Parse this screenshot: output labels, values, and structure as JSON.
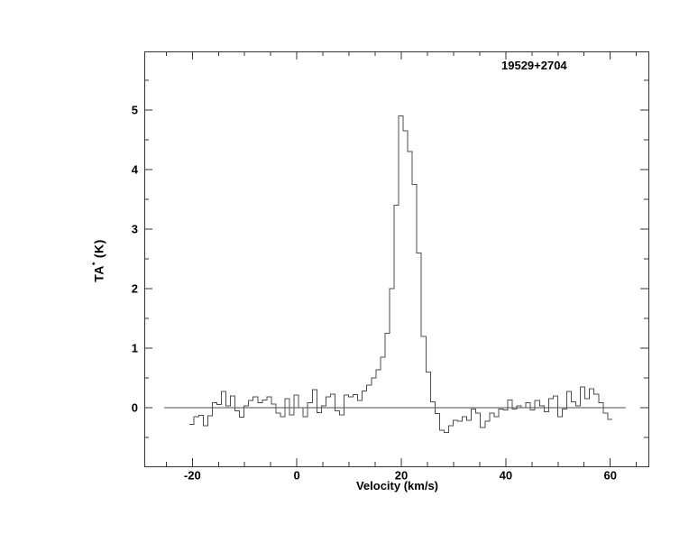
{
  "page": {
    "background": "#ffffff"
  },
  "chart_data": {
    "type": "line",
    "style": "step-histogram",
    "title": "19529+2704",
    "xlabel": "Velocity (km/s)",
    "ylabel": "TA* (K)",
    "ylabel_parts": {
      "base": "TA",
      "sup": "*",
      "unit": "(K)"
    },
    "xlim": [
      -29.2,
      67.3
    ],
    "ylim": [
      -0.985,
      5.985
    ],
    "x_major_ticks": [
      -20,
      0,
      20,
      40,
      60
    ],
    "x_tick_labels": [
      "-20",
      "0",
      "20",
      "40",
      "60"
    ],
    "x_minor_tick_step": 5,
    "y_major_ticks": [
      0,
      1,
      2,
      3,
      4,
      5
    ],
    "y_tick_labels": [
      "0",
      "1",
      "2",
      "3",
      "4",
      "5"
    ],
    "y_minor_tick_step": 0.5,
    "grid": "off",
    "legend": "none",
    "frame_color": "#333333",
    "line_color": "#4d4d4d",
    "text_color": "#000000",
    "zero_line": {
      "T": 0,
      "v_start": -25.4,
      "v_end": 63.0
    },
    "peak": {
      "velocity": 19.9,
      "T_max": 4.9
    },
    "series": [
      {
        "name": "spectrum",
        "v_start": -20.1,
        "dv": 0.87,
        "v_end": 59.94,
        "T": [
          -0.28,
          -0.15,
          -0.13,
          -0.3,
          -0.14,
          0.08,
          0.05,
          0.27,
          0.03,
          0.2,
          -0.05,
          -0.16,
          0.03,
          0.12,
          0.18,
          0.08,
          0.13,
          0.18,
          0.06,
          -0.09,
          -0.15,
          0.15,
          -0.12,
          0.21,
          0.0,
          -0.15,
          0.08,
          0.3,
          -0.08,
          0.03,
          0.18,
          0.23,
          -0.05,
          -0.12,
          0.21,
          0.18,
          0.22,
          0.12,
          0.28,
          0.38,
          0.5,
          0.64,
          0.85,
          1.25,
          2.0,
          3.4,
          4.9,
          4.65,
          4.3,
          3.75,
          2.6,
          1.2,
          0.6,
          0.1,
          -0.1,
          -0.38,
          -0.42,
          -0.3,
          -0.21,
          -0.23,
          -0.15,
          -0.21,
          -0.02,
          -0.09,
          -0.33,
          -0.23,
          -0.09,
          -0.15,
          -0.02,
          -0.04,
          0.13,
          -0.02,
          0.03,
          0.0,
          0.08,
          -0.04,
          0.12,
          0.03,
          -0.07,
          0.15,
          0.2,
          -0.15,
          -0.02,
          0.27,
          0.1,
          0.03,
          0.35,
          0.15,
          0.32,
          0.23,
          0.08,
          -0.09,
          -0.2
        ]
      }
    ]
  }
}
